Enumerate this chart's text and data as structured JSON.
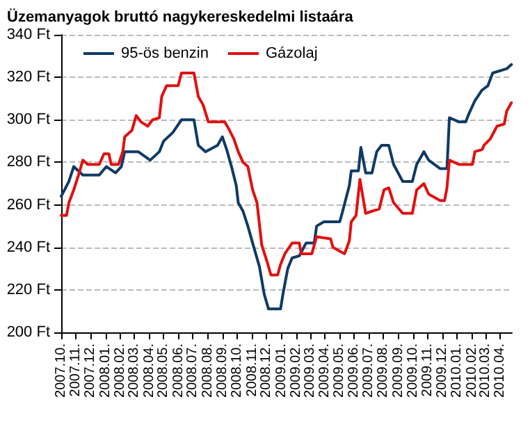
{
  "chart_data": {
    "type": "line",
    "title": "Üzemanyagok bruttó nagykereskedelmi listaára",
    "xlim": [
      "2007-10-01",
      "2010-04-25"
    ],
    "xticks": [
      {
        "value": "2007-10-01",
        "label": "2007.10."
      },
      {
        "value": "2007-11-01",
        "label": "2007.11."
      },
      {
        "value": "2007-12-01",
        "label": "2007.12."
      },
      {
        "value": "2008-01-01",
        "label": "2008.01."
      },
      {
        "value": "2008-02-01",
        "label": "2008.02."
      },
      {
        "value": "2008-03-01",
        "label": "2008.03."
      },
      {
        "value": "2008-04-01",
        "label": "2008.04."
      },
      {
        "value": "2008-05-01",
        "label": "2008.05."
      },
      {
        "value": "2008-06-01",
        "label": "2008.06."
      },
      {
        "value": "2008-07-01",
        "label": "2008.07."
      },
      {
        "value": "2008-08-01",
        "label": "2008.08."
      },
      {
        "value": "2008-09-01",
        "label": "2008.09."
      },
      {
        "value": "2008-10-01",
        "label": "2008.10."
      },
      {
        "value": "2008-11-01",
        "label": "2008.11."
      },
      {
        "value": "2008-12-01",
        "label": "2008.12."
      },
      {
        "value": "2009-01-01",
        "label": "2009.01."
      },
      {
        "value": "2009-02-01",
        "label": "2009.02."
      },
      {
        "value": "2009-03-01",
        "label": "2009.03."
      },
      {
        "value": "2009-04-01",
        "label": "2009.04."
      },
      {
        "value": "2009-05-01",
        "label": "2009.05."
      },
      {
        "value": "2009-06-01",
        "label": "2009.06."
      },
      {
        "value": "2009-07-01",
        "label": "2009.07."
      },
      {
        "value": "2009-08-01",
        "label": "2009.08."
      },
      {
        "value": "2009-09-01",
        "label": "2009.09."
      },
      {
        "value": "2009-10-01",
        "label": "2009.10."
      },
      {
        "value": "2009-11-01",
        "label": "2009.11."
      },
      {
        "value": "2009-12-01",
        "label": "2009.12."
      },
      {
        "value": "2010-01-01",
        "label": "2010.01."
      },
      {
        "value": "2010-02-01",
        "label": "2010.02."
      },
      {
        "value": "2010-03-01",
        "label": "2010.03."
      },
      {
        "value": "2010-04-01",
        "label": "2010.04."
      }
    ],
    "ylim": [
      200,
      340
    ],
    "yticks": [
      {
        "value": 200,
        "label": "200 Ft"
      },
      {
        "value": 220,
        "label": "220 Ft"
      },
      {
        "value": 240,
        "label": "240 Ft"
      },
      {
        "value": 260,
        "label": "260 Ft"
      },
      {
        "value": 280,
        "label": "280 Ft"
      },
      {
        "value": 300,
        "label": "300 Ft"
      },
      {
        "value": 320,
        "label": "320 Ft"
      },
      {
        "value": 340,
        "label": "340 Ft"
      }
    ],
    "grid": "y",
    "legend": "top",
    "marker": "none",
    "line_style": "solid",
    "series": [
      {
        "name": "95-ös benzin",
        "color": "#0f3a66",
        "x": [
          "2007-10-01",
          "2007-10-17",
          "2007-10-27",
          "2007-11-15",
          "2007-12-19",
          "2008-01-03",
          "2008-01-22",
          "2008-02-03",
          "2008-02-10",
          "2008-03-09",
          "2008-04-03",
          "2008-04-22",
          "2008-05-01",
          "2008-05-20",
          "2008-06-07",
          "2008-07-03",
          "2008-07-12",
          "2008-07-27",
          "2008-08-21",
          "2008-08-31",
          "2008-09-09",
          "2008-09-19",
          "2008-09-29",
          "2008-10-03",
          "2008-10-13",
          "2008-10-23",
          "2008-11-02",
          "2008-11-16",
          "2008-11-26",
          "2008-12-05",
          "2008-12-30",
          "2009-01-04",
          "2009-01-14",
          "2009-01-23",
          "2009-02-07",
          "2009-02-21",
          "2009-03-10",
          "2009-03-15",
          "2009-03-30",
          "2009-05-02",
          "2009-05-07",
          "2009-05-22",
          "2009-05-26",
          "2009-06-10",
          "2009-06-15",
          "2009-06-25",
          "2009-07-08",
          "2009-07-18",
          "2009-07-28",
          "2009-08-12",
          "2009-08-22",
          "2009-09-10",
          "2009-09-30",
          "2009-10-09",
          "2009-10-24",
          "2009-11-03",
          "2009-11-27",
          "2009-12-11",
          "2009-12-16",
          "2010-01-05",
          "2010-01-19",
          "2010-01-24",
          "2010-02-07",
          "2010-02-22",
          "2010-03-06",
          "2010-03-16",
          "2010-04-14",
          "2010-04-24"
        ],
        "values": [
          264,
          271,
          278,
          274,
          274,
          278,
          275,
          278,
          285,
          285,
          281,
          285,
          290,
          294,
          300,
          300,
          288,
          285,
          288,
          292,
          286,
          278,
          269,
          261,
          257,
          250,
          242,
          231,
          218,
          211,
          211,
          218,
          230,
          235,
          236,
          242,
          242,
          250,
          252,
          252,
          256,
          269,
          276,
          276,
          287,
          275,
          275,
          285,
          288,
          288,
          279,
          271,
          271,
          279,
          285,
          281,
          277,
          277,
          301,
          299,
          299,
          302,
          309,
          314,
          316,
          322,
          324,
          326
        ]
      },
      {
        "name": "Gázolaj",
        "color": "#e01010",
        "x": [
          "2007-10-01",
          "2007-10-12",
          "2007-10-17",
          "2007-10-27",
          "2007-11-06",
          "2007-11-15",
          "2007-11-25",
          "2007-12-19",
          "2007-12-29",
          "2008-01-08",
          "2008-01-13",
          "2008-01-28",
          "2008-02-06",
          "2008-02-10",
          "2008-02-25",
          "2008-03-05",
          "2008-03-15",
          "2008-03-29",
          "2008-04-08",
          "2008-04-22",
          "2008-04-27",
          "2008-05-07",
          "2008-05-31",
          "2008-06-07",
          "2008-07-03",
          "2008-07-12",
          "2008-07-22",
          "2008-08-02",
          "2008-09-05",
          "2008-09-15",
          "2008-09-24",
          "2008-10-03",
          "2008-10-13",
          "2008-10-23",
          "2008-11-02",
          "2008-11-11",
          "2008-11-21",
          "2008-12-01",
          "2008-12-10",
          "2008-12-24",
          "2008-12-30",
          "2009-01-08",
          "2009-01-23",
          "2009-02-07",
          "2009-02-11",
          "2009-03-05",
          "2009-03-15",
          "2009-04-13",
          "2009-04-18",
          "2009-05-12",
          "2009-05-22",
          "2009-05-26",
          "2009-06-05",
          "2009-06-13",
          "2009-06-25",
          "2009-07-08",
          "2009-07-23",
          "2009-08-02",
          "2009-08-12",
          "2009-08-22",
          "2009-09-10",
          "2009-09-30",
          "2009-10-09",
          "2009-10-24",
          "2009-11-03",
          "2009-11-27",
          "2009-12-06",
          "2009-12-11",
          "2009-12-16",
          "2010-01-05",
          "2010-02-02",
          "2010-02-07",
          "2010-02-22",
          "2010-02-26",
          "2010-03-11",
          "2010-03-25",
          "2010-04-09",
          "2010-04-14",
          "2010-04-24"
        ],
        "values": [
          255,
          255,
          261,
          267,
          274,
          281,
          279,
          279,
          284,
          284,
          279,
          279,
          285,
          292,
          295,
          302,
          299,
          297,
          300,
          301,
          311,
          316,
          316,
          322,
          322,
          311,
          307,
          299,
          299,
          295,
          291,
          285,
          280,
          278,
          267,
          261,
          241,
          234,
          227,
          227,
          232,
          237,
          242,
          242,
          237,
          237,
          245,
          244,
          240,
          237,
          243,
          252,
          255,
          272,
          256,
          257,
          258,
          267,
          268,
          261,
          256,
          256,
          267,
          270,
          265,
          262,
          262,
          268,
          281,
          279,
          279,
          285,
          286,
          288,
          291,
          297,
          298,
          304,
          308
        ]
      }
    ]
  }
}
